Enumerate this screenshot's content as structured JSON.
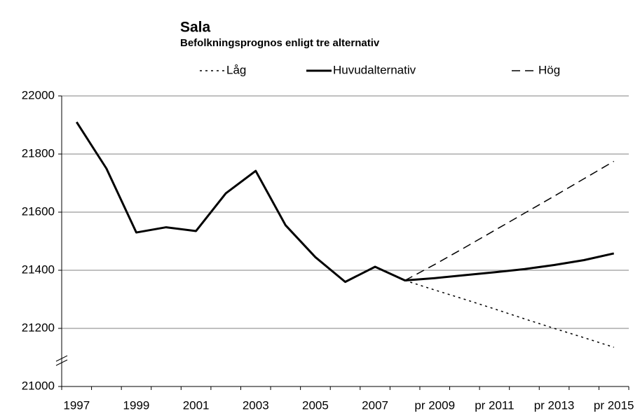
{
  "chart_data": {
    "type": "line",
    "title": "Sala",
    "subtitle": "Befolkningsprognos enligt tre alternativ",
    "categories": [
      "1997",
      null,
      "1999",
      null,
      "2001",
      null,
      "2003",
      null,
      "2005",
      null,
      "2007",
      null,
      "pr 2009",
      null,
      "pr 2011",
      null,
      "pr 2013",
      null,
      "pr 2015"
    ],
    "series": [
      {
        "name": "Låg",
        "color": "#000000",
        "style": "dotted",
        "values": [
          null,
          null,
          null,
          null,
          null,
          null,
          null,
          null,
          null,
          null,
          null,
          21365,
          21332,
          21300,
          21267,
          21233,
          21200,
          21168,
          21135
        ]
      },
      {
        "name": "Huvudalternativ",
        "color": "#000000",
        "style": "solid",
        "values": [
          21910,
          21750,
          21530,
          21548,
          21535,
          21665,
          21742,
          21555,
          21445,
          21360,
          21412,
          21365,
          21373,
          21383,
          21393,
          21404,
          21418,
          21435,
          21458
        ]
      },
      {
        "name": "Hög",
        "color": "#000000",
        "style": "dashed",
        "values": [
          null,
          null,
          null,
          null,
          null,
          null,
          null,
          null,
          null,
          null,
          null,
          21365,
          21420,
          21478,
          21537,
          21596,
          21655,
          21715,
          21775
        ]
      }
    ],
    "ylim": [
      21000,
      22000
    ],
    "yticks": [
      21000,
      21200,
      21400,
      21600,
      21800,
      22000
    ],
    "grid": true,
    "legend": "top"
  }
}
